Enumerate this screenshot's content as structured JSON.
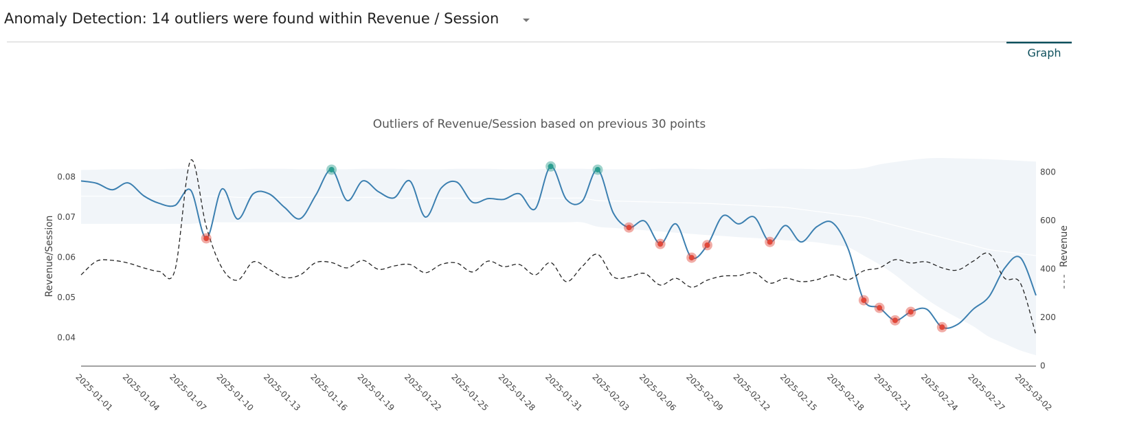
{
  "header": {
    "title": "Anomaly Detection: 14 outliers were found within Revenue / Session"
  },
  "tabs": [
    "Graph"
  ],
  "chart_data": {
    "type": "line",
    "title": "Outliers of Revenue/Session based on previous 30 points",
    "ylabel": "Revenue/Session",
    "y2label": "Revenue",
    "x": [
      "2025-01-01",
      "2025-01-02",
      "2025-01-03",
      "2025-01-04",
      "2025-01-05",
      "2025-01-06",
      "2025-01-07",
      "2025-01-08",
      "2025-01-09",
      "2025-01-10",
      "2025-01-11",
      "2025-01-12",
      "2025-01-13",
      "2025-01-14",
      "2025-01-15",
      "2025-01-16",
      "2025-01-17",
      "2025-01-18",
      "2025-01-19",
      "2025-01-20",
      "2025-01-21",
      "2025-01-22",
      "2025-01-23",
      "2025-01-24",
      "2025-01-25",
      "2025-01-26",
      "2025-01-27",
      "2025-01-28",
      "2025-01-29",
      "2025-01-30",
      "2025-01-31",
      "2025-02-01",
      "2025-02-02",
      "2025-02-03",
      "2025-02-04",
      "2025-02-05",
      "2025-02-06",
      "2025-02-07",
      "2025-02-08",
      "2025-02-09",
      "2025-02-10",
      "2025-02-11",
      "2025-02-12",
      "2025-02-13",
      "2025-02-14",
      "2025-02-15",
      "2025-02-16",
      "2025-02-17",
      "2025-02-18",
      "2025-02-19",
      "2025-02-20",
      "2025-02-21",
      "2025-02-22",
      "2025-02-23",
      "2025-02-24",
      "2025-02-25",
      "2025-02-26",
      "2025-02-27",
      "2025-02-28",
      "2025-03-01",
      "2025-03-02",
      "2025-03-03"
    ],
    "series": [
      {
        "color": "#3b7fb0",
        "axis": "y",
        "values": [
          0.0791,
          0.0785,
          0.0769,
          0.0786,
          0.0754,
          0.0735,
          0.073,
          0.0768,
          0.0648,
          0.0771,
          0.0696,
          0.0759,
          0.0759,
          0.0725,
          0.0697,
          0.0756,
          0.0819,
          0.0742,
          0.0791,
          0.0764,
          0.0749,
          0.0791,
          0.0701,
          0.0773,
          0.0788,
          0.0738,
          0.0747,
          0.0745,
          0.0759,
          0.0721,
          0.0827,
          0.0745,
          0.074,
          0.0819,
          0.0711,
          0.0675,
          0.0691,
          0.0634,
          0.0684,
          0.06,
          0.0631,
          0.0704,
          0.0684,
          0.0701,
          0.0639,
          0.068,
          0.0639,
          0.0677,
          0.0687,
          0.0622,
          0.0494,
          0.0475,
          0.0444,
          0.0465,
          0.0472,
          0.0427,
          0.0434,
          0.0472,
          0.0503,
          0.0574,
          0.06,
          0.0506
        ]
      },
      {
        "color": "#222222",
        "axis": "y2",
        "dash": true,
        "values": [
          377,
          434,
          437,
          426,
          406,
          391,
          397,
          850,
          576,
          406,
          355,
          431,
          400,
          366,
          377,
          428,
          428,
          406,
          437,
          400,
          414,
          420,
          386,
          420,
          426,
          389,
          434,
          411,
          420,
          377,
          428,
          349,
          411,
          462,
          369,
          369,
          383,
          335,
          363,
          326,
          355,
          372,
          374,
          386,
          343,
          363,
          349,
          357,
          377,
          357,
          394,
          406,
          440,
          426,
          431,
          406,
          397,
          434,
          465,
          363,
          343,
          128
        ]
      }
    ],
    "band": {
      "color": "#f1f5f9",
      "upper": [
        0.0818,
        0.0819,
        0.082,
        0.082,
        0.082,
        0.082,
        0.0821,
        0.0821,
        0.082,
        0.082,
        0.082,
        0.0821,
        0.0821,
        0.0821,
        0.082,
        0.082,
        0.082,
        0.082,
        0.0821,
        0.0821,
        0.0821,
        0.082,
        0.082,
        0.082,
        0.0821,
        0.0821,
        0.0821,
        0.082,
        0.082,
        0.082,
        0.0821,
        0.0821,
        0.0821,
        0.082,
        0.082,
        0.082,
        0.082,
        0.0821,
        0.0821,
        0.0821,
        0.082,
        0.082,
        0.082,
        0.082,
        0.0821,
        0.0821,
        0.0821,
        0.082,
        0.082,
        0.082,
        0.0823,
        0.0832,
        0.0838,
        0.0843,
        0.0847,
        0.0848,
        0.0847,
        0.0846,
        0.0845,
        0.0843,
        0.0841,
        0.0839
      ],
      "lower": [
        0.0684,
        0.0684,
        0.0684,
        0.0684,
        0.0684,
        0.0684,
        0.0684,
        0.0684,
        0.0688,
        0.0688,
        0.0688,
        0.0688,
        0.0688,
        0.0688,
        0.0688,
        0.0688,
        0.0688,
        0.0688,
        0.0688,
        0.0688,
        0.0688,
        0.0688,
        0.0688,
        0.0688,
        0.0688,
        0.0688,
        0.0688,
        0.0688,
        0.0688,
        0.0688,
        0.0688,
        0.0688,
        0.0688,
        0.0677,
        0.0674,
        0.0671,
        0.0668,
        0.0665,
        0.0662,
        0.0659,
        0.0656,
        0.0654,
        0.0651,
        0.0649,
        0.0646,
        0.0643,
        0.0641,
        0.0638,
        0.0632,
        0.0626,
        0.0605,
        0.0583,
        0.0557,
        0.0526,
        0.0497,
        0.0472,
        0.045,
        0.0429,
        0.0403,
        0.0386,
        0.0369,
        0.0357
      ],
      "mean": [
        0.0753,
        0.0753,
        0.0753,
        0.0753,
        0.0753,
        0.0753,
        0.0753,
        0.0753,
        0.0753,
        0.0753,
        0.075,
        0.075,
        0.075,
        0.075,
        0.075,
        0.075,
        0.075,
        0.075,
        0.075,
        0.075,
        0.0748,
        0.0748,
        0.0748,
        0.0748,
        0.0748,
        0.0748,
        0.0748,
        0.0748,
        0.0748,
        0.0748,
        0.0748,
        0.0748,
        0.0748,
        0.0742,
        0.0741,
        0.074,
        0.0739,
        0.0738,
        0.0737,
        0.0736,
        0.0735,
        0.0733,
        0.0731,
        0.0729,
        0.0727,
        0.0725,
        0.072,
        0.0715,
        0.071,
        0.0705,
        0.07,
        0.069,
        0.068,
        0.067,
        0.066,
        0.065,
        0.064,
        0.063,
        0.062,
        0.0615,
        0.061,
        0.0605
      ]
    },
    "outliers": [
      {
        "color": "#2a9d8f",
        "dates": [
          "2025-01-17",
          "2025-01-31",
          "2025-02-03"
        ]
      },
      {
        "color": "#e0483a",
        "dates": [
          "2025-01-09",
          "2025-02-05",
          "2025-02-07",
          "2025-02-09",
          "2025-02-10",
          "2025-02-14",
          "2025-02-20",
          "2025-02-21",
          "2025-02-22",
          "2025-02-23",
          "2025-02-25"
        ]
      }
    ],
    "xlim": [
      "2025-01-01",
      "2025-03-03"
    ],
    "xticks": [
      "2025-01-01",
      "2025-01-04",
      "2025-01-07",
      "2025-01-10",
      "2025-01-13",
      "2025-01-16",
      "2025-01-19",
      "2025-01-22",
      "2025-01-25",
      "2025-01-28",
      "2025-01-31",
      "2025-02-03",
      "2025-02-06",
      "2025-02-09",
      "2025-02-12",
      "2025-02-15",
      "2025-02-18",
      "2025-02-21",
      "2025-02-24",
      "2025-02-27",
      "2025-03-02"
    ],
    "ylim": [
      0.033,
      0.0848
    ],
    "yticks": [
      0.04,
      0.05,
      0.06,
      0.07,
      0.08
    ],
    "y2lim": [
      0,
      860
    ],
    "y2ticks": [
      0,
      200,
      400,
      600,
      800
    ],
    "grid": false
  }
}
